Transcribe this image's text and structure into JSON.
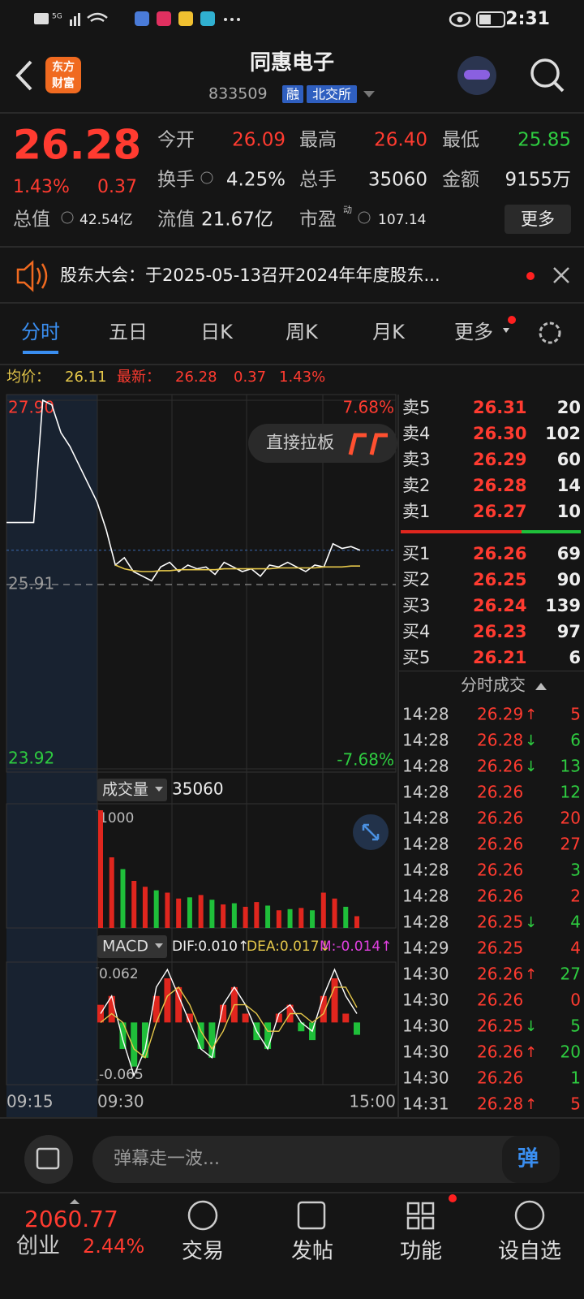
{
  "status_bar": {
    "network": "5G",
    "time": "2:31"
  },
  "header": {
    "logo": [
      "东方",
      "财富"
    ],
    "title": "同惠电子",
    "code": "833509",
    "tags": [
      "融",
      "北交所"
    ]
  },
  "quote": {
    "price": "26.28",
    "change_pct": "1.43%",
    "change": "0.37",
    "stats": [
      {
        "label": "今开",
        "value": "26.09",
        "color": "#ff3b30"
      },
      {
        "label": "最高",
        "value": "26.40",
        "color": "#ff3b30"
      },
      {
        "label": "最低",
        "value": "25.85",
        "color": "#2ecc40"
      },
      {
        "label": "换手",
        "value": "4.25%"
      },
      {
        "label": "总手",
        "value": "35060"
      },
      {
        "label": "金额",
        "value": "9155万"
      },
      {
        "label": "总值",
        "value": "42.54亿"
      },
      {
        "label": "流值",
        "value": "21.67亿"
      },
      {
        "label": "市盈",
        "sup": "动",
        "value": "107.14"
      }
    ],
    "more": "更多"
  },
  "notice": {
    "text": "股东大会：于2025-05-13召开2024年年度股东..."
  },
  "tabs": [
    "分时",
    "五日",
    "日K",
    "周K",
    "月K",
    "更多"
  ],
  "summary": {
    "avg_label": "均价：",
    "avg": "26.11",
    "last_label": "最新：",
    "last": "26.28",
    "change": "0.37",
    "change_pct": "1.43%"
  },
  "price_chart": {
    "type": "line",
    "button": "直接拉板",
    "ylim": [
      23.92,
      27.9
    ],
    "yticks": [
      {
        "value": 27.9,
        "label": "27.90"
      },
      25.91,
      23.92
    ],
    "right_labels": [
      "7.68%",
      "-7.68%"
    ],
    "times": [
      "09:15",
      "09:30",
      "15:00"
    ],
    "color": "#ffffff",
    "avg_color": "#e6c84a",
    "values": [
      26.58,
      26.58,
      26.58,
      26.58,
      27.9,
      27.85,
      27.55,
      27.4,
      27.2,
      27.0,
      26.8,
      26.5,
      26.12,
      26.2,
      26.05,
      26.0,
      25.95,
      26.1,
      26.15,
      26.05,
      26.12,
      26.08,
      26.1,
      26.02,
      26.15,
      26.1,
      26.05,
      26.08,
      26.0,
      26.12,
      26.1,
      26.15,
      26.1,
      26.05,
      26.12,
      26.1,
      26.35,
      26.3,
      26.32,
      26.28
    ],
    "avg_values": [
      null,
      null,
      null,
      null,
      null,
      null,
      null,
      null,
      null,
      null,
      null,
      null,
      26.12,
      26.08,
      26.06,
      26.05,
      26.05,
      26.06,
      26.06,
      26.07,
      26.07,
      26.07,
      26.07,
      26.07,
      26.08,
      26.08,
      26.08,
      26.08,
      26.08,
      26.08,
      26.09,
      26.09,
      26.09,
      26.09,
      26.09,
      26.1,
      26.1,
      26.1,
      26.11,
      26.11
    ]
  },
  "volume_chart": {
    "type": "bar",
    "label": "成交量",
    "total": "35060",
    "ylim": [
      0,
      1000
    ],
    "yticks": [
      1000
    ],
    "series": [
      {
        "color": "#e0261e",
        "values": [
          1000,
          600,
          null,
          400,
          350,
          null,
          300,
          250,
          null,
          280,
          null,
          200,
          null,
          180,
          220,
          null,
          150,
          null,
          170,
          null,
          300,
          250,
          null,
          100
        ]
      },
      {
        "color": "#1fbf3a",
        "values": [
          null,
          null,
          500,
          null,
          null,
          320,
          null,
          null,
          260,
          null,
          240,
          null,
          210,
          null,
          null,
          190,
          null,
          160,
          null,
          150,
          null,
          null,
          180,
          null
        ]
      }
    ]
  },
  "macd_chart": {
    "type": "bar",
    "label": "MACD",
    "dif_label": "DIF:0.010↑",
    "dea_label": "DEA:0.017↓",
    "m_label": "M:-0.014↑",
    "ylim": [
      -0.065,
      0.062
    ],
    "yticks": [
      0.062,
      -0.065
    ],
    "up_color": "#e0261e",
    "down_color": "#1fbf3a",
    "dif_color": "#ffffff",
    "dea_color": "#e6c84a",
    "values": [
      0.02,
      0.03,
      -0.03,
      -0.05,
      -0.04,
      0.03,
      0.05,
      0.04,
      0.01,
      -0.03,
      -0.04,
      0.02,
      0.04,
      0.01,
      -0.02,
      -0.03,
      0.01,
      0.02,
      -0.01,
      -0.02,
      0.03,
      0.05,
      0.01,
      -0.014
    ],
    "dif": [
      0.01,
      0.03,
      -0.02,
      -0.06,
      -0.03,
      0.04,
      0.06,
      0.03,
      0.0,
      -0.03,
      -0.04,
      0.02,
      0.04,
      0.02,
      -0.01,
      -0.03,
      0.01,
      0.02,
      0.0,
      -0.01,
      0.03,
      0.06,
      0.03,
      0.01
    ],
    "dea": [
      0.0,
      0.01,
      0.0,
      -0.03,
      -0.04,
      0.0,
      0.03,
      0.04,
      0.02,
      -0.01,
      -0.03,
      -0.01,
      0.02,
      0.02,
      0.01,
      -0.01,
      -0.01,
      0.01,
      0.01,
      0.0,
      0.01,
      0.04,
      0.04,
      0.017
    ]
  },
  "order_book": {
    "sell": [
      {
        "label": "卖5",
        "price": "26.31",
        "volume": 20
      },
      {
        "label": "卖4",
        "price": "26.30",
        "volume": 102
      },
      {
        "label": "卖3",
        "price": "26.29",
        "volume": 60
      },
      {
        "label": "卖2",
        "price": "26.28",
        "volume": 14
      },
      {
        "label": "卖1",
        "price": "26.27",
        "volume": 10
      }
    ],
    "buy": [
      {
        "label": "买1",
        "price": "26.26",
        "volume": 69
      },
      {
        "label": "买2",
        "price": "26.25",
        "volume": 90
      },
      {
        "label": "买3",
        "price": "26.24",
        "volume": 139
      },
      {
        "label": "买4",
        "price": "26.23",
        "volume": 97
      },
      {
        "label": "买5",
        "price": "26.21",
        "volume": 6
      }
    ]
  },
  "trades": {
    "title": "分时成交",
    "rows": [
      {
        "time": "14:28",
        "price": "26.29",
        "dir": "↑",
        "volume": 5,
        "color": "#ff3b30"
      },
      {
        "time": "14:28",
        "price": "26.28",
        "dir": "↓",
        "volume": 6,
        "color": "#2ecc40"
      },
      {
        "time": "14:28",
        "price": "26.26",
        "dir": "↓",
        "volume": 13,
        "color": "#2ecc40"
      },
      {
        "time": "14:28",
        "price": "26.26",
        "volume": 12,
        "color": "#2ecc40"
      },
      {
        "time": "14:28",
        "price": "26.26",
        "volume": 20,
        "color": "#ff3b30"
      },
      {
        "time": "14:28",
        "price": "26.26",
        "volume": 27,
        "color": "#ff3b30"
      },
      {
        "time": "14:28",
        "price": "26.26",
        "volume": 3,
        "color": "#2ecc40"
      },
      {
        "time": "14:28",
        "price": "26.26",
        "volume": 2,
        "color": "#ff3b30"
      },
      {
        "time": "14:28",
        "price": "26.25",
        "dir": "↓",
        "volume": 4,
        "color": "#2ecc40"
      },
      {
        "time": "14:29",
        "price": "26.25",
        "volume": 4,
        "color": "#ff3b30"
      },
      {
        "time": "14:30",
        "price": "26.26",
        "dir": "↑",
        "volume": 27,
        "color": "#2ecc40"
      },
      {
        "time": "14:30",
        "price": "26.26",
        "volume": 0,
        "color": "#ff3b30"
      },
      {
        "time": "14:30",
        "price": "26.25",
        "dir": "↓",
        "volume": 5,
        "color": "#2ecc40"
      },
      {
        "time": "14:30",
        "price": "26.26",
        "dir": "↑",
        "volume": 20,
        "color": "#2ecc40"
      },
      {
        "time": "14:30",
        "price": "26.26",
        "volume": 1,
        "color": "#2ecc40"
      },
      {
        "time": "14:31",
        "price": "26.28",
        "dir": "↑",
        "volume": 5,
        "color": "#ff3b30"
      }
    ]
  },
  "comment": {
    "placeholder": "弹幕走一波...",
    "button": "弹"
  },
  "bottom_nav": {
    "index_value": "2060.77",
    "index_name": "创业",
    "index_change": "2.44%",
    "items": [
      "交易",
      "发帖",
      "功能",
      "设自选"
    ]
  }
}
